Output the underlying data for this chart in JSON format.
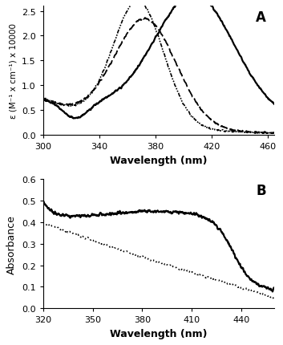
{
  "panel_A": {
    "xlabel": "Wavelength (nm)",
    "ylabel": "ε (M⁻¹ x cm⁻¹) x 10000",
    "xlim": [
      300,
      465
    ],
    "ylim": [
      0,
      2.6
    ],
    "yticks": [
      0.0,
      0.5,
      1.0,
      1.5,
      2.0,
      2.5
    ],
    "xticks": [
      300,
      340,
      380,
      420,
      460
    ],
    "label": "A"
  },
  "panel_B": {
    "xlabel": "Wavelength (nm)",
    "ylabel": "Absorbance",
    "xlim": [
      320,
      460
    ],
    "ylim": [
      0,
      0.6
    ],
    "yticks": [
      0,
      0.1,
      0.2,
      0.3,
      0.4,
      0.5,
      0.6
    ],
    "xticks": [
      320,
      350,
      380,
      410,
      440
    ],
    "label": "B"
  }
}
